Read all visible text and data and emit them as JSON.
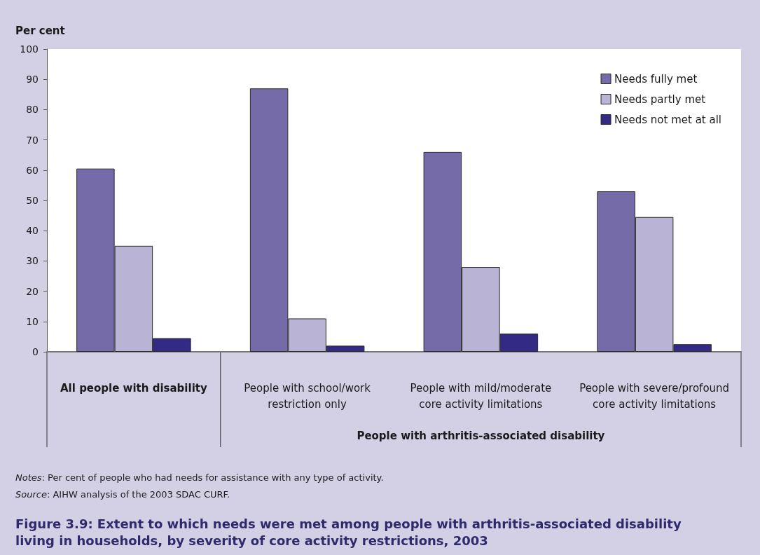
{
  "chart_data": {
    "type": "bar",
    "title": "Figure 3.9: Extent to which needs were met among people with arthritis-associated disability living in households, by severity of core activity restrictions, 2003",
    "ylabel": "Per cent",
    "categories": [
      "All people with disability",
      "People with school/work\nrestriction only",
      "People with mild/moderate\ncore activity limitations",
      "People with severe/profound\ncore activity limitations"
    ],
    "series": [
      {
        "name": "Needs fully met",
        "color": "#756ba8",
        "values": [
          60.5,
          87,
          66,
          53
        ]
      },
      {
        "name": "Needs partly met",
        "color": "#b9b3d5",
        "values": [
          35,
          11,
          28,
          44.5
        ]
      },
      {
        "name": "Needs not met at all",
        "color": "#332a85",
        "values": [
          4.5,
          2,
          6,
          2.5
        ]
      }
    ],
    "ylim": [
      0,
      100
    ],
    "yticks": [
      0,
      10,
      20,
      30,
      40,
      50,
      60,
      70,
      80,
      90,
      100
    ],
    "grid": false,
    "legend": "top right",
    "annotations": [
      "People with arthritis-associated disability",
      "Notes: Per cent of people who had needs for assistance with any type of activity.",
      "Source: AIHW analysis of the 2003 SDAC CURF."
    ]
  }
}
